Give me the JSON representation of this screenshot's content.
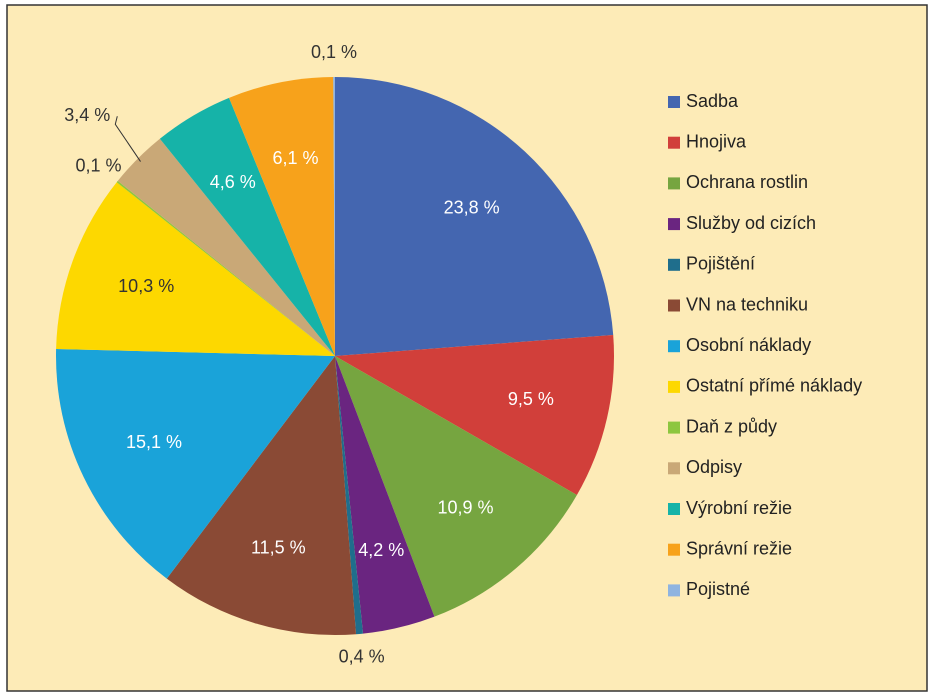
{
  "chart_data": {
    "type": "pie",
    "categories": [
      "Sadba",
      "Hnojiva",
      "Ochrana rostlin",
      "Služby od cizích",
      "Pojištění",
      "VN na techniku",
      "Osobní náklady",
      "Ostatní přímé náklady",
      "Daň z půdy",
      "Odpisy",
      "Výrobní režie",
      "Správní režie",
      "Pojistné"
    ],
    "values": [
      23.8,
      9.5,
      10.9,
      4.2,
      0.4,
      11.5,
      15.1,
      10.3,
      0.1,
      3.4,
      4.6,
      6.1,
      0.1
    ],
    "value_labels": [
      "23,8 %",
      "9,5 %",
      "10,9 %",
      "4,2 %",
      "0,4 %",
      "11,5 %",
      "15,1 %",
      "10,3 %",
      "0,1 %",
      "3,4 %",
      "4,6 %",
      "6,1 %",
      "0,1 %"
    ],
    "colors": [
      "#4466b0",
      "#d13f3a",
      "#76a540",
      "#6a2580",
      "#1f6e8c",
      "#8a4a35",
      "#1aa3d9",
      "#fdd800",
      "#8dc63f",
      "#c9a877",
      "#16b3a8",
      "#f7a21b",
      "#8fb4e0"
    ],
    "legend": "right"
  }
}
